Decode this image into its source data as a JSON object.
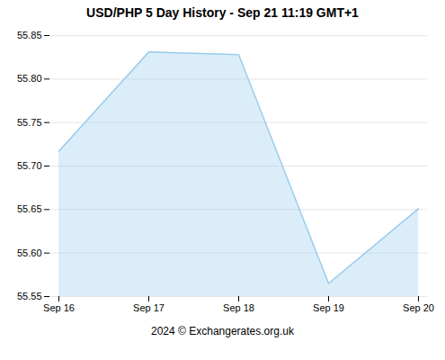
{
  "chart_data": {
    "type": "area",
    "title": "USD/PHP 5 Day History - Sep 21 11:19 GMT+1",
    "caption": "2024 © Exchangerates.org.uk",
    "categories": [
      "Sep 16",
      "Sep 17",
      "Sep 18",
      "Sep 19",
      "Sep 20"
    ],
    "values": [
      55.717,
      55.831,
      55.828,
      55.565,
      55.651
    ],
    "color": "#99ccee",
    "ylim": [
      55.55,
      55.85
    ],
    "yticks": [
      55.55,
      {
        "value": 55.6,
        "label": "55.60"
      },
      55.65,
      {
        "value": 55.7,
        "label": "55.70"
      },
      55.75,
      {
        "value": 55.8,
        "label": "55.80"
      },
      55.85
    ],
    "grid": true
  }
}
